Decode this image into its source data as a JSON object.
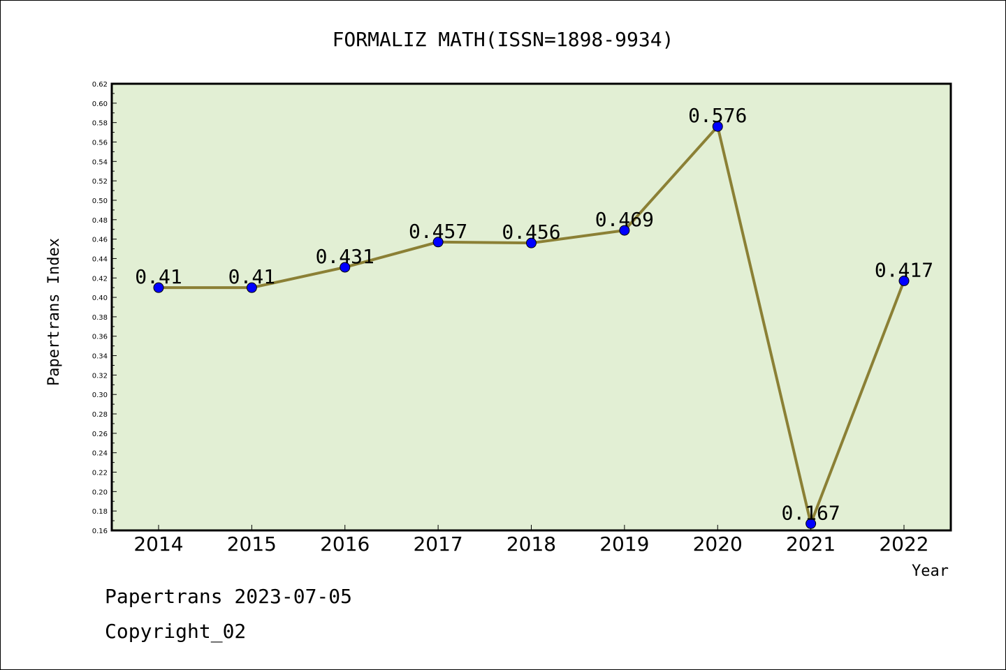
{
  "chart_data": {
    "type": "line",
    "title": "FORMALIZ MATH(ISSN=1898-9934)",
    "xlabel": "Year",
    "ylabel": "Papertrans Index",
    "categories": [
      "2014",
      "2015",
      "2016",
      "2017",
      "2018",
      "2019",
      "2020",
      "2021",
      "2022"
    ],
    "series": [
      {
        "values": [
          0.41,
          0.41,
          0.431,
          0.457,
          0.456,
          0.469,
          0.576,
          0.167,
          0.417
        ],
        "labels": [
          "0.41",
          "0.41",
          "0.431",
          "0.457",
          "0.456",
          "0.469",
          "0.576",
          "0.167",
          "0.417"
        ]
      }
    ],
    "ylim": [
      0.16,
      0.62
    ],
    "yticks": [
      "0.16",
      "0.18",
      "0.20",
      "0.22",
      "0.24",
      "0.26",
      "0.28",
      "0.30",
      "0.32",
      "0.34",
      "0.36",
      "0.38",
      "0.40",
      "0.42",
      "0.44",
      "0.46",
      "0.48",
      "0.50",
      "0.52",
      "0.54",
      "0.56",
      "0.58",
      "0.60",
      "0.62"
    ],
    "grid": false,
    "colors": {
      "plot_background": "#e2efd4",
      "line": "#8b8035",
      "marker": "#0000ff"
    }
  },
  "footer": {
    "line1": "Papertrans 2023-07-05",
    "line2": "Copyright_02"
  }
}
